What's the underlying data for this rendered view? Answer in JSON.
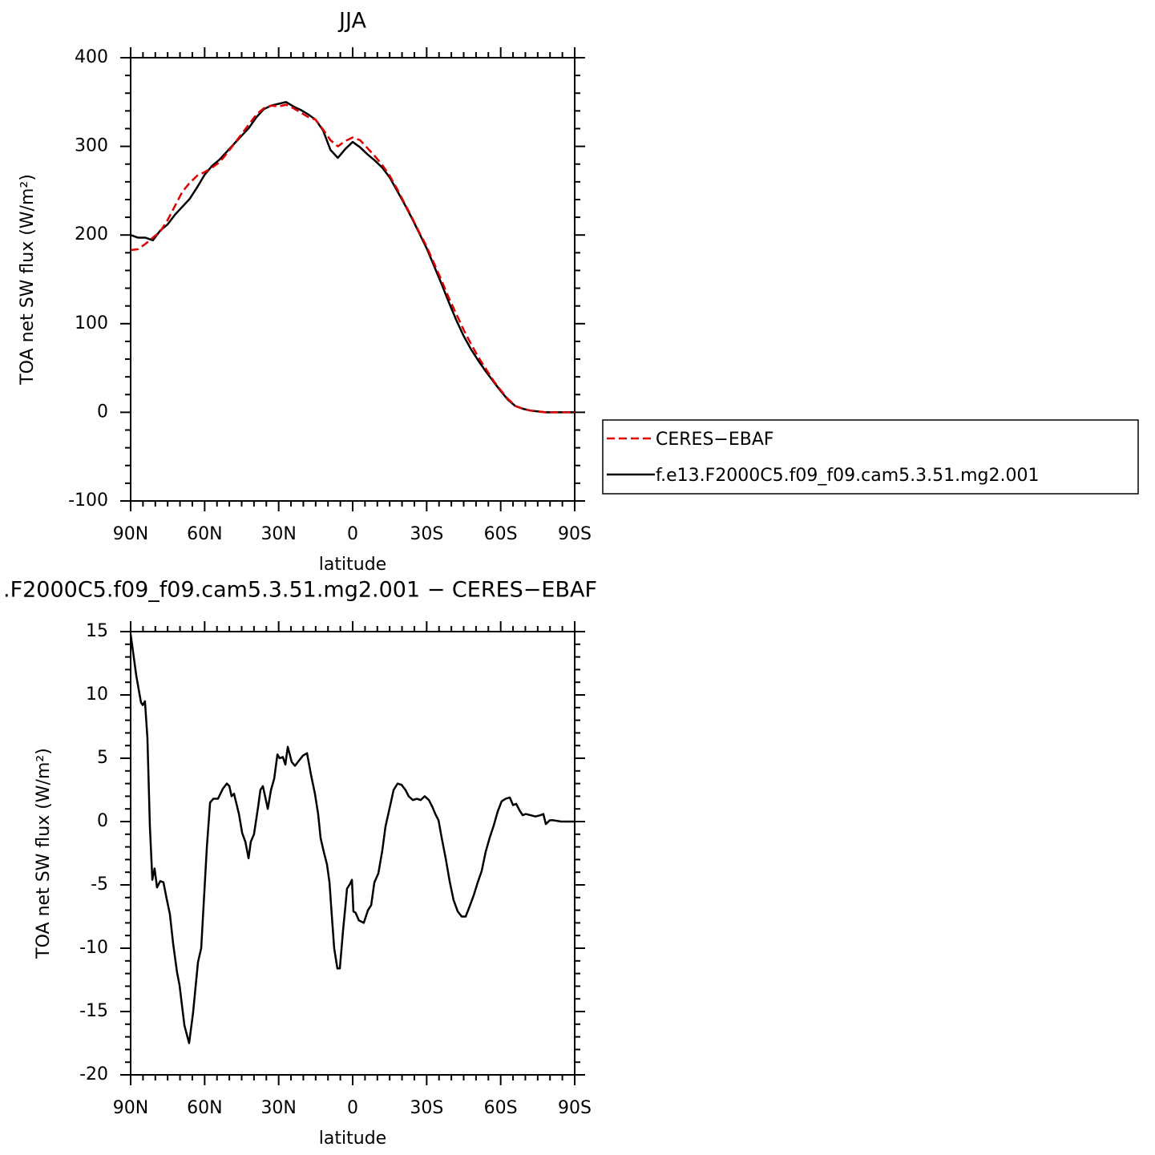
{
  "chart_data": [
    {
      "type": "line",
      "title": "JJA",
      "x_label": "latitude",
      "y_label": "TOA net SW flux (W/m²)",
      "x": [
        90,
        87,
        84,
        81,
        78,
        75,
        72,
        69,
        66,
        63,
        60,
        57,
        54,
        51,
        48,
        45,
        42,
        39,
        36,
        33,
        30,
        27,
        24,
        21,
        18,
        15,
        12,
        9,
        6,
        3,
        0,
        -3,
        -6,
        -9,
        -12,
        -15,
        -18,
        -21,
        -24,
        -27,
        -30,
        -33,
        -36,
        -39,
        -42,
        -45,
        -48,
        -51,
        -54,
        -57,
        -60,
        -63,
        -66,
        -69,
        -72,
        -75,
        -78,
        -81,
        -84,
        -87,
        -90
      ],
      "series": [
        {
          "name": "CERES−EBAF",
          "color": "#e00000",
          "style": "dashed",
          "values": [
            183,
            184,
            190,
            197,
            204,
            217,
            233,
            249,
            259,
            267,
            271,
            276,
            282,
            292,
            303,
            314,
            325,
            336,
            343,
            346,
            345,
            347,
            343,
            338,
            333,
            330,
            319,
            307,
            300,
            306,
            310,
            307,
            298,
            289,
            279,
            267,
            252,
            236,
            220,
            203,
            187,
            168,
            149,
            129,
            111,
            93,
            77,
            62,
            49,
            36,
            25,
            15,
            7,
            4,
            2,
            1,
            0,
            0,
            0,
            0,
            0
          ]
        },
        {
          "name": "f.e13.F2000C5.f09_f09.cam5.3.51.mg2.001",
          "color": "#000000",
          "style": "solid",
          "values": [
            200,
            197,
            197,
            194,
            205,
            212,
            223,
            232,
            241,
            254,
            268,
            278,
            285,
            294,
            303,
            312,
            321,
            333,
            342,
            346,
            348,
            350,
            345,
            341,
            336,
            330,
            318,
            296,
            287,
            297,
            305,
            299,
            291,
            284,
            276,
            265,
            250,
            235,
            219,
            202,
            185,
            165,
            145,
            124,
            104,
            86,
            71,
            58,
            46,
            35,
            24,
            14,
            7,
            4,
            2,
            1,
            0,
            0,
            0,
            0,
            0
          ]
        }
      ],
      "xlim": [
        90,
        -90
      ],
      "xticks": [
        {
          "value": 90,
          "label": "90N"
        },
        {
          "value": 60,
          "label": "60N"
        },
        {
          "value": 30,
          "label": "30N"
        },
        0,
        {
          "value": -30,
          "label": "30S"
        },
        {
          "value": -60,
          "label": "60S"
        },
        {
          "value": -90,
          "label": "90S"
        }
      ],
      "ylim": [
        -100,
        400
      ],
      "yticks": [
        -100,
        0,
        100,
        200,
        300,
        400
      ],
      "legend": "outside-right"
    },
    {
      "type": "line",
      "title": ".F2000C5.f09_f09.cam5.3.51.mg2.001 − CERES−EBAF",
      "x_label": "latitude",
      "y_label": "TOA net SW flux (W/m²)",
      "x": [
        90,
        87.7,
        85.8,
        85.1,
        84.2,
        83.2,
        82.2,
        81.2,
        80.3,
        79.3,
        78.0,
        76.7,
        75.4,
        74.1,
        72.8,
        71.2,
        70.2,
        68.2,
        66.3,
        64.7,
        62.7,
        61.4,
        59.1,
        57.8,
        56.5,
        54.6,
        52.6,
        51.0,
        50.0,
        49.1,
        48.1,
        46.1,
        44.8,
        43.5,
        42.2,
        41.3,
        40.0,
        38.3,
        37.4,
        36.4,
        34.4,
        33.1,
        31.8,
        30.5,
        29.6,
        28.3,
        27.3,
        26.3,
        24.7,
        23.4,
        21.8,
        20.2,
        18.5,
        16.9,
        15.3,
        14.0,
        13.0,
        11.7,
        10.4,
        9.4,
        8.5,
        7.5,
        6.2,
        5.2,
        3.9,
        2.9,
        2.3,
        1.0,
        0.3,
        -0.3,
        -1.2,
        -2.5,
        -4.5,
        -6.2,
        -7.5,
        -8.8,
        -10.4,
        -12.0,
        -13.3,
        -14.9,
        -16.6,
        -18.2,
        -19.8,
        -21.4,
        -22.7,
        -24.4,
        -26.0,
        -27.6,
        -29.2,
        -30.9,
        -32.2,
        -33.5,
        -34.8,
        -36.1,
        -37.7,
        -39.3,
        -40.9,
        -42.6,
        -44.2,
        -45.8,
        -47.4,
        -49.1,
        -50.7,
        -52.3,
        -53.9,
        -55.5,
        -57.2,
        -58.8,
        -60.4,
        -62.0,
        -63.7,
        -65.0,
        -66.3,
        -67.6,
        -68.9,
        -70.2,
        -72.1,
        -74.1,
        -76.1,
        -77.3,
        -78.3,
        -79.9,
        -81.5,
        -84.5,
        -90
      ],
      "color": "#000000",
      "values": [
        14.8,
        11.5,
        9.4,
        9.2,
        9.5,
        6.6,
        -0.4,
        -4.6,
        -3.7,
        -5.2,
        -4.7,
        -4.8,
        -6.1,
        -7.3,
        -9.6,
        -11.9,
        -12.9,
        -16.1,
        -17.5,
        -15.1,
        -11.1,
        -10.0,
        -2.0,
        1.5,
        1.8,
        1.8,
        2.6,
        3.0,
        2.8,
        2.0,
        2.2,
        0.6,
        -0.9,
        -1.6,
        -2.9,
        -1.6,
        -1.0,
        1.2,
        2.5,
        2.8,
        1.0,
        2.5,
        3.4,
        5.3,
        5.0,
        5.1,
        4.5,
        5.9,
        4.7,
        4.4,
        4.8,
        5.2,
        5.4,
        3.7,
        2.2,
        0.6,
        -1.3,
        -2.4,
        -3.4,
        -4.8,
        -7.3,
        -10.0,
        -11.6,
        -11.6,
        -8.6,
        -6.6,
        -5.3,
        -4.9,
        -4.6,
        -7.1,
        -7.2,
        -7.8,
        -8.0,
        -7.0,
        -6.6,
        -4.8,
        -4.1,
        -2.3,
        -0.4,
        1.0,
        2.5,
        3.0,
        2.9,
        2.5,
        2.0,
        1.7,
        1.8,
        1.7,
        2.0,
        1.7,
        1.2,
        0.6,
        0.1,
        -1.3,
        -2.9,
        -4.7,
        -6.2,
        -7.1,
        -7.5,
        -7.5,
        -6.7,
        -5.8,
        -4.8,
        -3.9,
        -2.4,
        -1.3,
        -0.3,
        0.8,
        1.6,
        1.8,
        1.9,
        1.3,
        1.4,
        0.9,
        0.5,
        0.6,
        0.5,
        0.4,
        0.5,
        0.6,
        -0.2,
        0.1,
        0.1,
        0.0,
        0.0
      ],
      "xlim": [
        90,
        -90
      ],
      "xticks": [
        {
          "value": 90,
          "label": "90N"
        },
        {
          "value": 60,
          "label": "60N"
        },
        {
          "value": 30,
          "label": "30N"
        },
        0,
        {
          "value": -30,
          "label": "30S"
        },
        {
          "value": -60,
          "label": "60S"
        },
        {
          "value": -90,
          "label": "90S"
        }
      ],
      "ylim": [
        -20,
        15
      ],
      "yticks": [
        -20,
        -15,
        -10,
        -5,
        0,
        5,
        10,
        15
      ]
    }
  ]
}
